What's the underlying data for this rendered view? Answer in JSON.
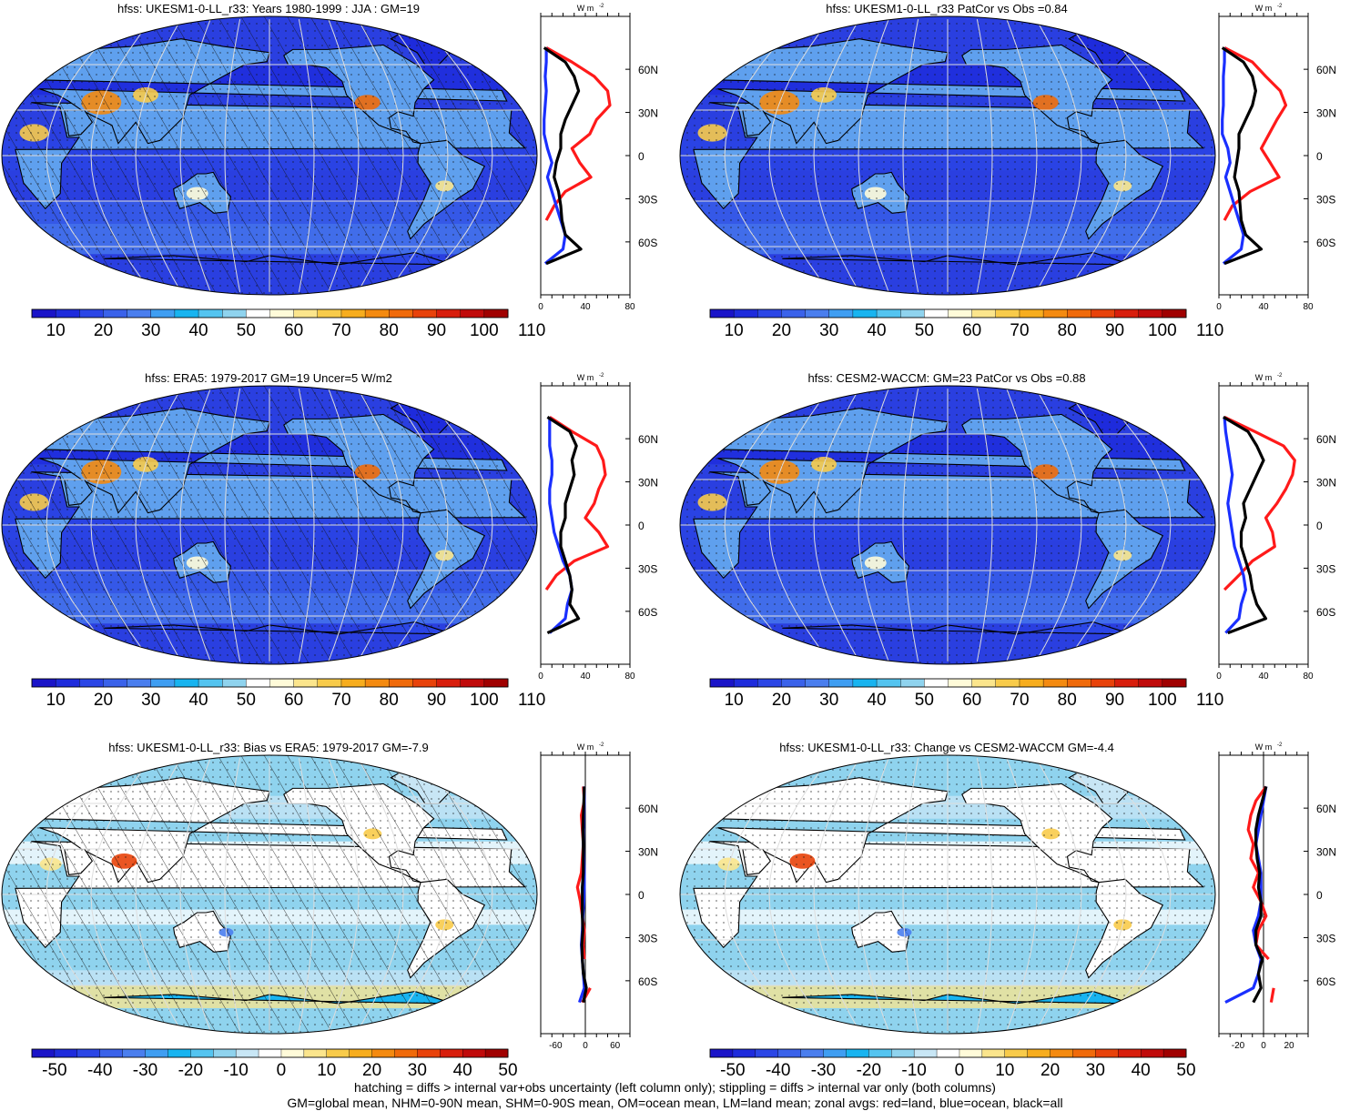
{
  "footer": {
    "line1": "hatching = diffs > internal var+obs uncertainty (left column only); stippling = diffs > internal var only (both columns)",
    "line2": "GM=global mean, NHM=0-90N mean, SHM=0-90S mean, OM=ocean mean, LM=land mean; zonal avgs: red=land, blue=ocean, black=all"
  },
  "colors": {
    "ocean": "#2a3fe0",
    "land": "#5fa0ee",
    "land_series": "#ff1a1a",
    "ocean_series": "#1a2fff",
    "all_series": "#000000"
  },
  "palettes": {
    "abs": [
      "#1a14c8",
      "#1e2bdc",
      "#2b46e6",
      "#3a62ea",
      "#4a7eee",
      "#3f9ef2",
      "#18b4f0",
      "#54c4f0",
      "#8fd3ee",
      "#ffffff",
      "#fffbd9",
      "#fbe58c",
      "#f8cb4a",
      "#f7ad1e",
      "#f48a10",
      "#f06a0a",
      "#e8420a",
      "#d81e0c",
      "#c00a0a",
      "#a00000"
    ],
    "diff": [
      "#1a14c8",
      "#1e2bdc",
      "#2b46e6",
      "#3a62ea",
      "#4a7eee",
      "#3f9ef2",
      "#18b4f0",
      "#54c4f0",
      "#8fd3ee",
      "#c8e6f5",
      "#ffffff",
      "#fffbd9",
      "#fbe58c",
      "#f8cb4a",
      "#f7ad1e",
      "#f48a10",
      "#f06a0a",
      "#e8420a",
      "#d81e0c",
      "#c00a0a",
      "#a00000"
    ]
  },
  "chart_data": [
    {
      "type": "heatmap",
      "map": "robinson",
      "title": "hfss: UKESM1-0-LL_r33: Years 1980-1999 : JJA : GM=19",
      "colorbar": {
        "labels": [
          "10",
          "20",
          "30",
          "40",
          "50",
          "60",
          "70",
          "80",
          "90",
          "100",
          "110"
        ],
        "palette": "abs"
      },
      "overlay": "hatching+stippling",
      "zonal": {
        "unit_label": "W m",
        "unit_sup": "-2",
        "xlim": [
          0,
          80
        ],
        "xticks": [
          "0",
          "40",
          "80"
        ],
        "lat_ticks": [
          "60N",
          "30N",
          "0",
          "30S",
          "60S"
        ],
        "lat": [
          75,
          65,
          55,
          45,
          35,
          25,
          15,
          5,
          -5,
          -15,
          -25,
          -35,
          -45,
          -55,
          -65,
          -75
        ],
        "land": [
          5,
          28,
          48,
          60,
          62,
          50,
          44,
          28,
          35,
          45,
          22,
          12,
          5,
          null,
          5,
          null
        ],
        "ocean": [
          5,
          5,
          4,
          5,
          4,
          3,
          3,
          6,
          10,
          6,
          10,
          14,
          18,
          22,
          20,
          4
        ],
        "all": [
          3,
          22,
          30,
          34,
          28,
          22,
          18,
          18,
          14,
          12,
          16,
          18,
          19,
          22,
          36,
          5
        ]
      }
    },
    {
      "type": "heatmap",
      "map": "robinson",
      "title": "hfss: UKESM1-0-LL_r33 PatCor vs Obs =0.84",
      "colorbar": {
        "labels": [
          "10",
          "20",
          "30",
          "40",
          "50",
          "60",
          "70",
          "80",
          "90",
          "100",
          "110"
        ],
        "palette": "abs"
      },
      "overlay": "stippling",
      "zonal": {
        "unit_label": "W m",
        "unit_sup": "-2",
        "xlim": [
          0,
          80
        ],
        "xticks": [
          "0",
          "40",
          "80"
        ],
        "lat_ticks": [
          "60N",
          "30N",
          "0",
          "30S",
          "60S"
        ],
        "lat": [
          75,
          65,
          55,
          45,
          35,
          25,
          15,
          5,
          -5,
          -15,
          -25,
          -35,
          -45,
          -55,
          -65,
          -75
        ],
        "land": [
          5,
          30,
          42,
          55,
          60,
          52,
          45,
          38,
          46,
          54,
          28,
          12,
          5,
          null,
          5,
          null
        ],
        "ocean": [
          5,
          5,
          4,
          4,
          4,
          3,
          3,
          8,
          10,
          6,
          10,
          14,
          18,
          22,
          20,
          4
        ],
        "all": [
          3,
          22,
          30,
          33,
          30,
          24,
          18,
          18,
          16,
          14,
          18,
          19,
          20,
          24,
          38,
          5
        ]
      }
    },
    {
      "type": "heatmap",
      "map": "robinson",
      "title": "hfss: ERA5: 1979-2017 GM=19 Uncer=5 W/m2",
      "colorbar": {
        "labels": [
          "10",
          "20",
          "30",
          "40",
          "50",
          "60",
          "70",
          "80",
          "90",
          "100",
          "110"
        ],
        "palette": "abs"
      },
      "overlay": "hatching+stippling",
      "zonal": {
        "unit_label": "W m",
        "unit_sup": "-2",
        "xlim": [
          0,
          80
        ],
        "xticks": [
          "0",
          "40",
          "80"
        ],
        "lat_ticks": [
          "60N",
          "30N",
          "0",
          "30S",
          "60S"
        ],
        "lat": [
          75,
          65,
          55,
          45,
          35,
          25,
          15,
          5,
          -5,
          -15,
          -25,
          -35,
          -45,
          -55,
          -65,
          -75
        ],
        "land": [
          8,
          28,
          50,
          56,
          58,
          52,
          48,
          40,
          52,
          60,
          30,
          14,
          5,
          null,
          5,
          null
        ],
        "ocean": [
          8,
          8,
          8,
          10,
          10,
          8,
          8,
          10,
          12,
          16,
          20,
          26,
          28,
          24,
          22,
          8
        ],
        "all": [
          6,
          26,
          32,
          28,
          30,
          26,
          22,
          22,
          18,
          18,
          22,
          26,
          28,
          26,
          34,
          6
        ]
      }
    },
    {
      "type": "heatmap",
      "map": "robinson",
      "title": "hfss: CESM2-WACCM: GM=23 PatCor vs Obs =0.88",
      "colorbar": {
        "labels": [
          "10",
          "20",
          "30",
          "40",
          "50",
          "60",
          "70",
          "80",
          "90",
          "100",
          "110"
        ],
        "palette": "abs"
      },
      "overlay": "stippling",
      "zonal": {
        "unit_label": "W m",
        "unit_sup": "-2",
        "xlim": [
          0,
          80
        ],
        "xticks": [
          "0",
          "40",
          "80"
        ],
        "lat_ticks": [
          "60N",
          "30N",
          "0",
          "30S",
          "60S"
        ],
        "lat": [
          75,
          65,
          55,
          45,
          35,
          25,
          15,
          5,
          -5,
          -15,
          -25,
          -35,
          -45,
          -55,
          -65,
          -75
        ],
        "land": [
          5,
          32,
          58,
          68,
          66,
          60,
          52,
          42,
          48,
          50,
          30,
          18,
          5,
          null,
          5,
          null
        ],
        "ocean": [
          5,
          6,
          8,
          10,
          12,
          10,
          8,
          10,
          12,
          14,
          18,
          22,
          24,
          20,
          18,
          6
        ],
        "all": [
          4,
          26,
          34,
          40,
          34,
          28,
          22,
          24,
          20,
          20,
          24,
          28,
          30,
          34,
          42,
          8
        ]
      }
    },
    {
      "type": "heatmap",
      "map": "robinson",
      "title": "hfss: UKESM1-0-LL_r33: Bias vs ERA5: 1979-2017 GM=-7.9",
      "colorbar": {
        "labels": [
          "-50",
          "-40",
          "-30",
          "-20",
          "-10",
          "0",
          "10",
          "20",
          "30",
          "40",
          "50"
        ],
        "palette": "diff"
      },
      "overlay": "hatching+stippling",
      "zonal": {
        "unit_label": "W m",
        "unit_sup": "-2",
        "xlim": [
          -90,
          90
        ],
        "xticks": [
          "-60",
          "0",
          "60"
        ],
        "lat_ticks": [
          "60N",
          "30N",
          "0",
          "30S",
          "60S"
        ],
        "lat": [
          75,
          65,
          55,
          45,
          35,
          25,
          15,
          5,
          -5,
          -15,
          -25,
          -35,
          -45,
          -55,
          -65,
          -75
        ],
        "land": [
          -4,
          -2,
          -8,
          -6,
          -4,
          -6,
          -8,
          -16,
          -10,
          -6,
          -2,
          -4,
          -2,
          null,
          10,
          -6
        ],
        "ocean": [
          -2,
          -2,
          -3,
          -4,
          -4,
          -3,
          -2,
          -2,
          -3,
          -5,
          -6,
          -8,
          -6,
          -4,
          -2,
          -12
        ],
        "all": [
          -2,
          -3,
          -4,
          -5,
          -4,
          -4,
          -4,
          -6,
          -6,
          -6,
          -5,
          -7,
          -6,
          -4,
          2,
          -4
        ]
      }
    },
    {
      "type": "heatmap",
      "map": "robinson",
      "title": "hfss: UKESM1-0-LL_r33: Change vs CESM2-WACCM GM=-4.4",
      "colorbar": {
        "labels": [
          "-50",
          "-40",
          "-30",
          "-20",
          "-10",
          "0",
          "10",
          "20",
          "30",
          "40",
          "50"
        ],
        "palette": "diff"
      },
      "overlay": "stippling",
      "zonal": {
        "unit_label": "W m",
        "unit_sup": "-2",
        "xlim": [
          -35,
          35
        ],
        "xticks": [
          "-20",
          "0",
          "20"
        ],
        "lat_ticks": [
          "60N",
          "30N",
          "0",
          "30S",
          "60S"
        ],
        "lat": [
          75,
          65,
          55,
          45,
          35,
          25,
          15,
          5,
          -5,
          -15,
          -25,
          -35,
          -45,
          -55,
          -65,
          -75
        ],
        "land": [
          2,
          -6,
          -10,
          -12,
          -8,
          -10,
          -4,
          -8,
          -2,
          2,
          -4,
          -6,
          4,
          null,
          8,
          6
        ],
        "ocean": [
          2,
          0,
          -2,
          -4,
          -6,
          -4,
          -2,
          -2,
          -2,
          -4,
          -8,
          -6,
          -2,
          -4,
          -8,
          -30
        ],
        "all": [
          2,
          -1,
          -4,
          -6,
          -6,
          -5,
          -3,
          -4,
          -2,
          -2,
          -6,
          -6,
          -1,
          -4,
          -2,
          -8
        ]
      }
    }
  ]
}
